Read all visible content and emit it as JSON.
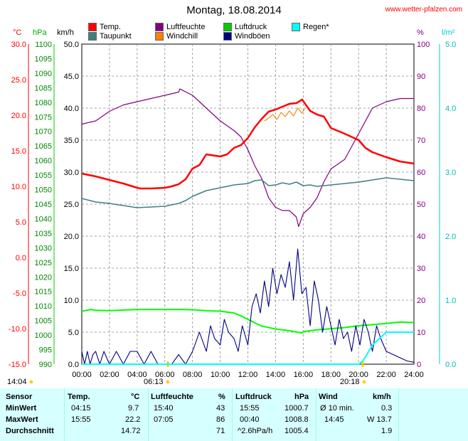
{
  "header": {
    "title": "Montag, 18.08.2014",
    "site": "www.wetter-pfalzen.com"
  },
  "axes_units": {
    "temp": "°C",
    "pressure": "hPa",
    "wind": "km/h",
    "humidity": "%",
    "rain": "l/m²"
  },
  "legend": [
    {
      "label": "Temp.",
      "color": "#ff0000"
    },
    {
      "label": "Luftfeuchte",
      "color": "#800080"
    },
    {
      "label": "Luftdruck",
      "color": "#00cc00"
    },
    {
      "label": "Regen*",
      "color": "#00ffff"
    },
    {
      "label": "Taupunkt",
      "color": "#408080"
    },
    {
      "label": "Windchill",
      "color": "#ff8000"
    },
    {
      "label": "Windböen",
      "color": "#000080"
    }
  ],
  "sun": {
    "left_time": "14:04",
    "sunrise": "06:13",
    "sunset": "20:18"
  },
  "table": {
    "headers": [
      "Sensor",
      "Temp.",
      "°C",
      "Luftfeuchte",
      "%",
      "Luftdruck",
      "hPa",
      "Wind",
      "km/h"
    ],
    "rows": [
      {
        "label": "MinWert",
        "t_time": "04:15",
        "t_val": "9.7",
        "h_time": "15:40",
        "h_val": "43",
        "p_time": "15:55",
        "p_val": "1000.7",
        "w_time": "Ø 10 min.",
        "w_val": "0.3"
      },
      {
        "label": "MaxWert",
        "t_time": "15:55",
        "t_val": "22.2",
        "h_time": "07:05",
        "h_val": "86",
        "p_time": "00:40",
        "p_val": "1008.8",
        "w_time": "14:45",
        "w_val": "W 13.7"
      },
      {
        "label": "Durchschnitt",
        "t_time": "",
        "t_val": "14.72",
        "h_time": "",
        "h_val": "71",
        "p_time": "^2.6hPa/h",
        "p_val": "1005.4",
        "w_time": "",
        "w_val": "1.9"
      }
    ]
  },
  "chart_data": {
    "type": "line",
    "x_unit": "hour of day",
    "x_ticks": [
      "00:00",
      "02:00",
      "04:00",
      "06:00",
      "08:00",
      "10:00",
      "12:00",
      "14:00",
      "16:00",
      "18:00",
      "20:00",
      "22:00",
      "24:00"
    ],
    "axes": {
      "temp": {
        "range": [
          -15,
          30
        ],
        "ticks": [
          "30.0",
          "25.0",
          "20.0",
          "15.0",
          "10.0",
          "5.0",
          "0.0",
          "-5.0",
          "-10.0",
          "-15.0"
        ],
        "color": "#ff0000"
      },
      "pressure": {
        "range": [
          990,
          1100
        ],
        "ticks": [
          "1100",
          "1095",
          "1090",
          "1085",
          "1080",
          "1075",
          "1070",
          "1065",
          "1060",
          "1055",
          "1050",
          "1045",
          "1040",
          "1035",
          "1030",
          "1025",
          "1020",
          "1015",
          "1010",
          "1005",
          "1000",
          "995",
          "990"
        ],
        "color": "#00aa00"
      },
      "wind": {
        "range": [
          0,
          50
        ],
        "ticks": [
          "50.0",
          "45.0",
          "40.0",
          "35.0",
          "30.0",
          "25.0",
          "20.0",
          "15.0",
          "10.0",
          "5.0",
          "0.0"
        ],
        "color": "#000000"
      },
      "humidity": {
        "range": [
          0,
          100
        ],
        "ticks": [
          "100",
          "90",
          "80",
          "70",
          "60",
          "50",
          "40",
          "30",
          "20",
          "10",
          "0"
        ],
        "color": "#800080"
      },
      "rain": {
        "range": [
          0,
          5
        ],
        "ticks": [
          "5.0",
          "4.0",
          "3.0",
          "2.0",
          "1.0",
          "0.0"
        ],
        "color": "#00cccc"
      }
    },
    "series": [
      {
        "name": "Temp.",
        "axis": "temp",
        "color": "#ff0000",
        "x": [
          0,
          1,
          2,
          3,
          4,
          4.25,
          5,
          6,
          6.5,
          7,
          7.5,
          8,
          8.5,
          9,
          10,
          10.5,
          11,
          11.5,
          12,
          12.5,
          13,
          13.5,
          14,
          14.5,
          15,
          15.5,
          15.92,
          16.5,
          17,
          17.5,
          18,
          19,
          20,
          20.5,
          21,
          22,
          23,
          24
        ],
        "y": [
          11.8,
          11.4,
          10.9,
          10.4,
          9.8,
          9.7,
          9.7,
          9.8,
          10,
          10.3,
          11,
          12.5,
          13,
          14.5,
          14.2,
          14.5,
          15.4,
          15.8,
          16.8,
          18.3,
          19.5,
          20.5,
          20.8,
          21.2,
          21.6,
          21.7,
          22.2,
          20.6,
          20.1,
          19.8,
          18.2,
          17.4,
          16.5,
          15.4,
          14.8,
          14.1,
          13.5,
          13.2
        ]
      },
      {
        "name": "Windchill",
        "axis": "temp",
        "color": "#ff8000",
        "x": [
          13.2,
          13.5,
          13.8,
          14.1,
          14.4,
          14.7,
          15.0,
          15.3,
          15.6,
          15.9,
          16.1
        ],
        "y": [
          19.2,
          19.6,
          20.1,
          19.4,
          20.4,
          19.8,
          20.6,
          19.9,
          21.0,
          20.3,
          20.9
        ]
      },
      {
        "name": "Taupunkt",
        "axis": "temp",
        "color": "#408080",
        "x": [
          0,
          1,
          2,
          3,
          4,
          5,
          6,
          7,
          7.5,
          8,
          9,
          10,
          11,
          12,
          12.5,
          13,
          13.5,
          14,
          14.5,
          15,
          15.5,
          16,
          16.5,
          17,
          18,
          19,
          20,
          21,
          22,
          23,
          24
        ],
        "y": [
          8.3,
          7.8,
          7.6,
          7.3,
          7.0,
          7.1,
          7.2,
          7.6,
          8.0,
          8.6,
          9.4,
          9.8,
          10.2,
          10.4,
          10.8,
          10.9,
          10.1,
          10.2,
          10.5,
          10.3,
          10.6,
          10.1,
          10.2,
          10.0,
          10.2,
          10.4,
          10.6,
          10.9,
          11.2,
          11.0,
          10.8
        ]
      },
      {
        "name": "Luftfeuchte",
        "axis": "humidity",
        "color": "#800080",
        "x": [
          0,
          1,
          2,
          3,
          4,
          5,
          6,
          7,
          7.08,
          8,
          8.5,
          9,
          10,
          11,
          11.5,
          12,
          12.5,
          13,
          13.5,
          14,
          14.5,
          15,
          15.5,
          15.67,
          16,
          16.5,
          17,
          17.5,
          18,
          19,
          20,
          21,
          22,
          23,
          24
        ],
        "y": [
          75,
          76,
          79,
          81,
          82,
          83,
          84,
          85,
          86,
          84,
          82,
          80,
          76,
          73,
          71,
          67,
          62,
          58,
          52,
          49,
          48,
          48,
          46,
          43,
          47,
          49,
          52,
          57,
          61,
          64,
          72,
          80,
          82,
          83,
          83
        ]
      },
      {
        "name": "Luftdruck",
        "axis": "pressure",
        "color": "#00ff00",
        "x": [
          0,
          0.67,
          1,
          2,
          3,
          4,
          5,
          6,
          7,
          8,
          9,
          10,
          11,
          11.5,
          12,
          12.5,
          13,
          14,
          15,
          15.92,
          16,
          17,
          18,
          19,
          20,
          21,
          22,
          23,
          24
        ],
        "y": [
          1008.2,
          1008.8,
          1008.5,
          1008.4,
          1008.6,
          1008.8,
          1008.8,
          1008.8,
          1008.8,
          1008.7,
          1008.4,
          1008.2,
          1007.6,
          1006.6,
          1005.4,
          1004.2,
          1003.1,
          1002.1,
          1001.5,
          1000.7,
          1001.2,
          1001.8,
          1002.2,
          1002.6,
          1003.2,
          1003.6,
          1004.0,
          1004.5,
          1004.3
        ]
      },
      {
        "name": "Windböen",
        "axis": "wind",
        "color": "#000080",
        "x": [
          0,
          0.2,
          0.4,
          0.6,
          0.8,
          1.0,
          1.3,
          1.6,
          2.0,
          2.5,
          3.0,
          3.5,
          4.0,
          4.5,
          5.0,
          5.5,
          6.0,
          6.5,
          7.0,
          7.5,
          8.0,
          8.5,
          9.0,
          9.3,
          9.6,
          10.0,
          10.3,
          10.6,
          11.0,
          11.3,
          11.6,
          12.0,
          12.3,
          12.6,
          12.9,
          13.2,
          13.5,
          13.8,
          14.1,
          14.4,
          14.7,
          15.0,
          15.3,
          15.6,
          15.9,
          16.2,
          16.5,
          16.8,
          17.1,
          17.4,
          17.7,
          18.0,
          18.3,
          18.6,
          18.9,
          19.2,
          19.5,
          19.8,
          20.1,
          20.4,
          20.7,
          21.0,
          21.3,
          21.6,
          22.0,
          22.5,
          23.0,
          23.5,
          24.0
        ],
        "y": [
          2,
          0,
          2,
          0,
          1.5,
          2,
          0,
          2,
          0,
          2,
          0,
          2,
          2,
          0,
          2,
          0,
          0,
          0,
          1.5,
          0,
          2,
          5,
          2,
          6,
          4,
          3,
          7,
          5,
          4,
          2,
          6,
          3,
          9,
          11,
          8,
          13,
          9,
          15,
          11,
          14,
          12,
          16,
          10,
          18,
          11,
          12,
          6,
          13,
          10,
          5,
          9,
          6,
          3,
          7,
          4,
          5,
          2,
          6,
          3,
          7,
          5,
          2,
          6,
          4,
          2,
          1.5,
          1,
          0.5,
          0.3
        ]
      },
      {
        "name": "Regen*",
        "axis": "rain",
        "color": "#00ffff",
        "x": [
          0,
          20.0,
          20.3,
          20.6,
          21.0,
          21.5,
          22.0,
          24.0
        ],
        "y": [
          0,
          0,
          0.05,
          0.15,
          0.3,
          0.4,
          0.5,
          0.5
        ]
      }
    ]
  }
}
